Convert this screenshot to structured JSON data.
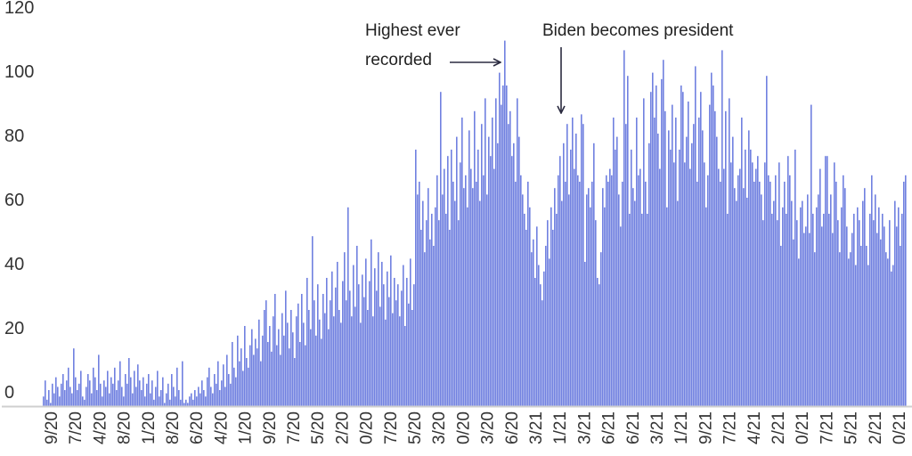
{
  "chart_data": {
    "type": "bar",
    "title": "",
    "xlabel": "",
    "ylabel": "",
    "ylim": [
      0,
      120
    ],
    "yticks": [
      "0",
      "20",
      "40",
      "60",
      "80",
      "100",
      "120"
    ],
    "grid": false,
    "bar_color": "#7080e0",
    "xtick_labels": [
      "9/20",
      "7/20",
      "4/20",
      "8/20",
      "1/20",
      "8/20",
      "6/20",
      "4/20",
      "1/20",
      "9/20",
      "7/20",
      "5/20",
      "2/20",
      "0/20",
      "7/20",
      "5/20",
      "3/20",
      "0/20",
      "3/20",
      "6/20",
      "3/21",
      "1/21",
      "3/21",
      "6/21",
      "6/21",
      "3/21",
      "1/21",
      "9/21",
      "7/21",
      "4/21",
      "2/21",
      "0/21",
      "7/21",
      "5/21",
      "2/21",
      "0/21"
    ],
    "annotations": [
      {
        "line1": "Highest ever",
        "line2": "recorded",
        "arrow": "right"
      },
      {
        "line1": "Biden becomes president",
        "arrow": "down"
      }
    ],
    "values": [
      3,
      8,
      2,
      5,
      1,
      7,
      4,
      9,
      6,
      3,
      7,
      10,
      5,
      8,
      12,
      6,
      4,
      18,
      9,
      5,
      7,
      11,
      3,
      2,
      6,
      10,
      8,
      4,
      12,
      9,
      5,
      16,
      7,
      3,
      8,
      6,
      11,
      4,
      9,
      7,
      12,
      5,
      8,
      14,
      6,
      3,
      10,
      7,
      15,
      9,
      4,
      11,
      6,
      13,
      8,
      5,
      9,
      3,
      7,
      10,
      4,
      8,
      2,
      6,
      11,
      3,
      5,
      9,
      1,
      4,
      7,
      2,
      10,
      6,
      3,
      12,
      5,
      2,
      14,
      1,
      2,
      1,
      3,
      4,
      2,
      5,
      3,
      6,
      4,
      8,
      5,
      3,
      9,
      12,
      6,
      4,
      10,
      7,
      14,
      5,
      8,
      13,
      6,
      16,
      10,
      7,
      20,
      12,
      9,
      22,
      14,
      18,
      11,
      25,
      15,
      12,
      19,
      24,
      16,
      21,
      18,
      27,
      14,
      22,
      30,
      33,
      20,
      25,
      17,
      28,
      35,
      19,
      24,
      16,
      29,
      22,
      36,
      26,
      18,
      30,
      23,
      15,
      28,
      32,
      20,
      35,
      26,
      19,
      40,
      30,
      24,
      53,
      33,
      22,
      38,
      27,
      21,
      35,
      29,
      40,
      24,
      33,
      42,
      28,
      37,
      45,
      30,
      26,
      39,
      48,
      33,
      62,
      36,
      28,
      44,
      31,
      50,
      38,
      26,
      41,
      34,
      46,
      30,
      39,
      52,
      28,
      43,
      36,
      48,
      31,
      45,
      38,
      27,
      42,
      34,
      47,
      29,
      40,
      33,
      38,
      28,
      36,
      44,
      25,
      40,
      32,
      46,
      30,
      38,
      80,
      66,
      70,
      55,
      64,
      48,
      58,
      68,
      52,
      60,
      50,
      62,
      72,
      58,
      98,
      66,
      74,
      60,
      78,
      55,
      80,
      70,
      64,
      84,
      58,
      76,
      90,
      68,
      72,
      62,
      86,
      74,
      68,
      92,
      70,
      80,
      64,
      88,
      72,
      96,
      66,
      84,
      78,
      90,
      74,
      96,
      82,
      104,
      94,
      100,
      114,
      100,
      88,
      92,
      78,
      82,
      70,
      96,
      84,
      72,
      66,
      60,
      55,
      70,
      62,
      48,
      52,
      40,
      56,
      44,
      38,
      33,
      42,
      50,
      58,
      46,
      62,
      55,
      68,
      60,
      72,
      78,
      64,
      82,
      70,
      88,
      66,
      80,
      90,
      74,
      85,
      72,
      70,
      91,
      88,
      45,
      66,
      68,
      62,
      70,
      82,
      58,
      40,
      38,
      48,
      68,
      62,
      72,
      70,
      74,
      72,
      90,
      80,
      84,
      66,
      56,
      70,
      111,
      88,
      103,
      60,
      80,
      68,
      64,
      90,
      72,
      74,
      60,
      96,
      70,
      60,
      82,
      98,
      104,
      90,
      100,
      85,
      74,
      102,
      108,
      92,
      62,
      86,
      80,
      94,
      76,
      90,
      64,
      80,
      100,
      98,
      76,
      84,
      95,
      74,
      82,
      88,
      106,
      70,
      90,
      98,
      86,
      76,
      62,
      72,
      94,
      104,
      100,
      92,
      84,
      74,
      70,
      111,
      74,
      92,
      60,
      96,
      76,
      84,
      68,
      64,
      72,
      74,
      90,
      68,
      80,
      65,
      86,
      80,
      76,
      70,
      74,
      78,
      70,
      66,
      58,
      76,
      103,
      72,
      70,
      60,
      64,
      72,
      58,
      76,
      50,
      62,
      70,
      60,
      78,
      72,
      64,
      52,
      80,
      58,
      46,
      62,
      64,
      54,
      56,
      66,
      54,
      94,
      60,
      48,
      62,
      66,
      74,
      56,
      60,
      78,
      78,
      60,
      66,
      54,
      76,
      70,
      58,
      48,
      62,
      72,
      68,
      56,
      46,
      48,
      54,
      60,
      44,
      62,
      58,
      50,
      64,
      68,
      50,
      44,
      60,
      72,
      58,
      66,
      54,
      62,
      52,
      60,
      56,
      48,
      46,
      58,
      42,
      44,
      64,
      56,
      62,
      50,
      60,
      70,
      72
    ]
  }
}
